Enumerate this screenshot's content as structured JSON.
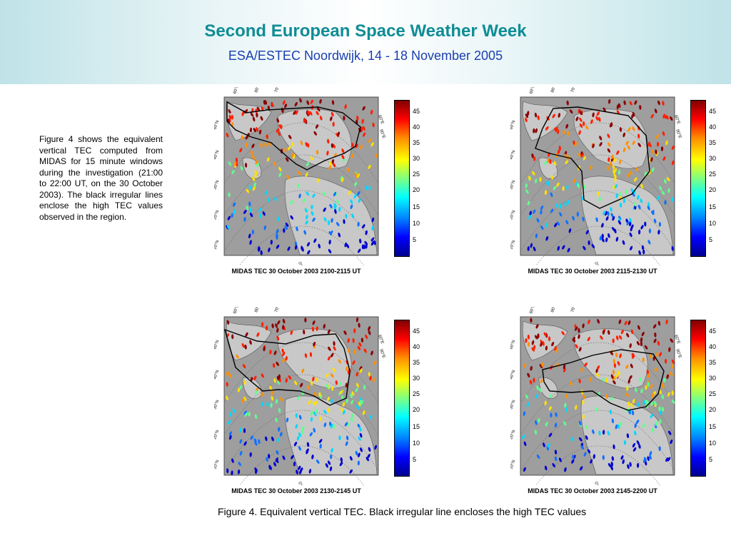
{
  "header": {
    "title": "Second European Space Weather Week",
    "subtitle": "ESA/ESTEC Noordwijk, 14 - 18 November 2005"
  },
  "description": "Figure 4 shows the equivalent vertical TEC computed from MIDAS for 15 minute windows during the investigation (21:00 to 22:00 UT, on the 30 October 2003). The black irregular lines enclose the high TEC values observed in the region.",
  "colorbar_ticks": [
    "45",
    "40",
    "35",
    "30",
    "25",
    "20",
    "15",
    "10",
    "5"
  ],
  "map_labels": {
    "lat": [
      "60°N",
      "40°N",
      "30°N",
      "20°N",
      "10°N"
    ],
    "lon": [
      "60°W",
      "80°W",
      "70°W",
      "60°E",
      "90°E",
      "0°"
    ]
  },
  "panels": [
    {
      "caption": "MIDAS TEC 30 October 2003 2100-2115 UT"
    },
    {
      "caption": "MIDAS TEC 30 October 2003 2115-2130 UT"
    },
    {
      "caption": "MIDAS TEC 30 October 2003 2130-2145 UT"
    },
    {
      "caption": "MIDAS TEC 30 October 2003 2145-2200 UT"
    }
  ],
  "figure_caption": "Figure 4. Equivalent vertical TEC. Black irregular line encloses the high TEC values",
  "colors": {
    "title": "#0f8d95",
    "subtitle": "#1a3fb0"
  }
}
